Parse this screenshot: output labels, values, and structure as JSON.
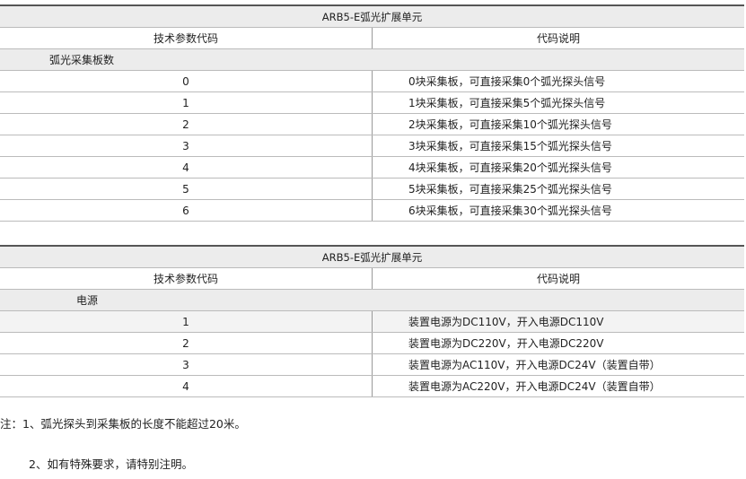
{
  "table1": {
    "title": "ARB5-E弧光扩展单元",
    "col1": "技术参数代码",
    "col2": "代码说明",
    "section": "弧光采集板数",
    "rows": [
      {
        "code": "0",
        "desc": "0块采集板，可直接采集0个弧光探头信号"
      },
      {
        "code": "1",
        "desc": "1块采集板，可直接采集5个弧光探头信号"
      },
      {
        "code": "2",
        "desc": "2块采集板，可直接采集10个弧光探头信号"
      },
      {
        "code": "3",
        "desc": "3块采集板，可直接采集15个弧光探头信号"
      },
      {
        "code": "4",
        "desc": "4块采集板，可直接采集20个弧光探头信号"
      },
      {
        "code": "5",
        "desc": "5块采集板，可直接采集25个弧光探头信号"
      },
      {
        "code": "6",
        "desc": "6块采集板，可直接采集30个弧光探头信号"
      }
    ]
  },
  "table2": {
    "title": "ARB5-E弧光扩展单元",
    "col1": "技术参数代码",
    "col2": "代码说明",
    "section": "电源",
    "rows": [
      {
        "code": "1",
        "desc": "装置电源为DC110V，开入电源DC110V"
      },
      {
        "code": "2",
        "desc": "装置电源为DC220V，开入电源DC220V"
      },
      {
        "code": "3",
        "desc": "装置电源为AC110V，开入电源DC24V（装置自带）"
      },
      {
        "code": "4",
        "desc": "装置电源为AC220V，开入电源DC24V（装置自带）"
      }
    ]
  },
  "notes": [
    "注：1、弧光探头到采集板的长度不能超过20米。",
    "2、如有特殊要求，请特别注明。"
  ]
}
